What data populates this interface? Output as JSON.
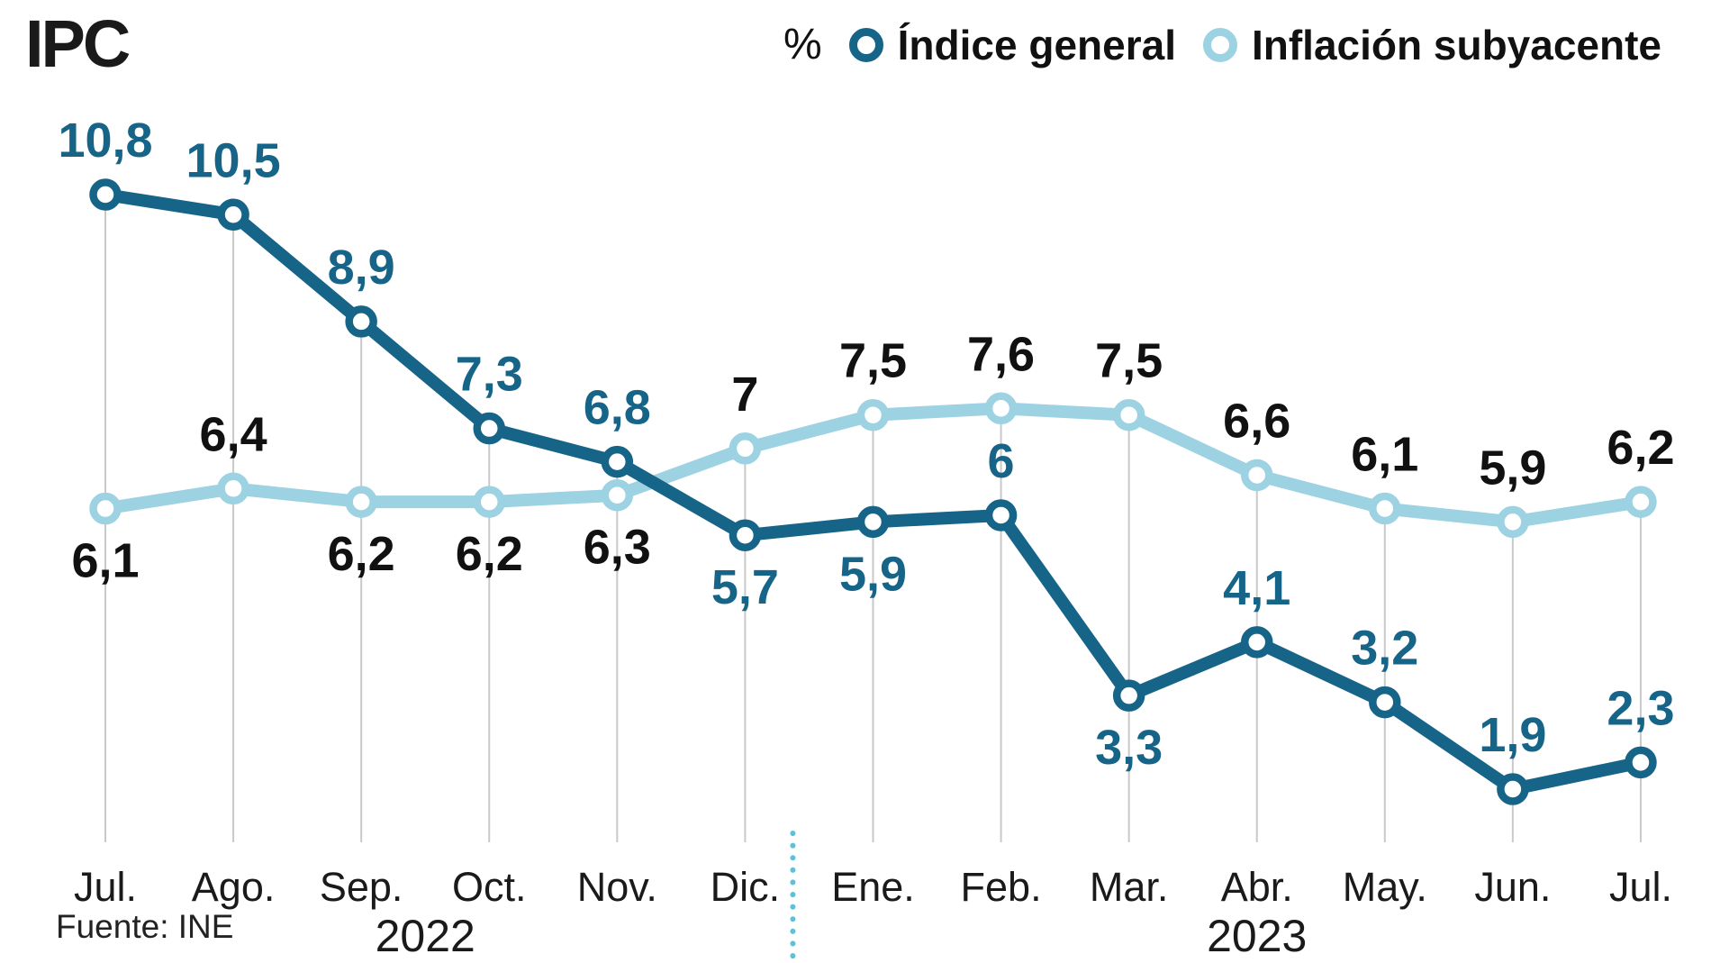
{
  "title": "IPC",
  "source": "Fuente: INE",
  "legend": {
    "unit": "%",
    "series": [
      {
        "label": "Índice general",
        "color": "#176489"
      },
      {
        "label": "Inflación subyacente",
        "color": "#9cd2e2"
      }
    ]
  },
  "colors": {
    "dark_series": "#176489",
    "light_series": "#9cd2e2",
    "dark_label": "#176489",
    "light_label": "#111111",
    "grid": "#c9c9c9",
    "divider": "#5fc0d8",
    "axis_text": "#1a1a1a"
  },
  "chart_data": {
    "type": "line",
    "title": "IPC",
    "unit": "%",
    "categories": [
      "Jul.",
      "Ago.",
      "Sep.",
      "Oct.",
      "Nov.",
      "Dic.",
      "Ene.",
      "Feb.",
      "Mar.",
      "Abr.",
      "May.",
      "Jun.",
      "Jul."
    ],
    "year_groups": [
      {
        "label": "2022",
        "span": [
          0,
          5
        ]
      },
      {
        "label": "2023",
        "span": [
          6,
          12
        ]
      }
    ],
    "divider_after_index": 5,
    "grid": true,
    "legend_position": "top",
    "ylim": [
      0,
      12
    ],
    "series": [
      {
        "name": "Inflación subyacente",
        "color": "#9cd2e2",
        "label_color": "#111111",
        "values": [
          6.1,
          6.4,
          6.2,
          6.2,
          6.3,
          7,
          7.5,
          7.6,
          7.5,
          6.6,
          6.1,
          5.9,
          6.2
        ],
        "labels": [
          "6,1",
          "6,4",
          "6,2",
          "6,2",
          "6,3",
          "7",
          "7,5",
          "7,6",
          "7,5",
          "6,6",
          "6,1",
          "5,9",
          "6,2"
        ],
        "label_pos": [
          "below",
          "above",
          "below",
          "below",
          "below",
          "above",
          "above",
          "above",
          "above",
          "above",
          "above",
          "above",
          "above"
        ]
      },
      {
        "name": "Índice general",
        "color": "#176489",
        "label_color": "#176489",
        "values": [
          10.8,
          10.5,
          8.9,
          7.3,
          6.8,
          5.7,
          5.9,
          6,
          3.3,
          4.1,
          3.2,
          1.9,
          2.3
        ],
        "labels": [
          "10,8",
          "10,5",
          "8,9",
          "7,3",
          "6,8",
          "5,7",
          "5,9",
          "6",
          "3,3",
          "4,1",
          "3,2",
          "1,9",
          "2,3"
        ],
        "label_pos": [
          "above",
          "above",
          "above",
          "above",
          "above",
          "below",
          "below",
          "above",
          "below",
          "above",
          "above",
          "above",
          "above"
        ]
      }
    ]
  }
}
